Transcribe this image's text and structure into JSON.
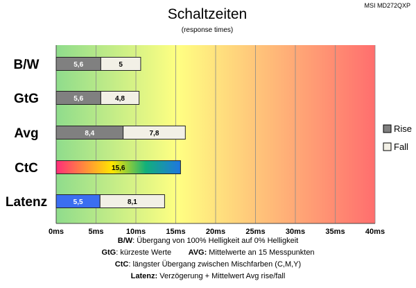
{
  "header": {
    "model": "MSI MD272QXP"
  },
  "chart_data": {
    "type": "bar",
    "orientation": "horizontal",
    "stacked": true,
    "title": "Schaltzeiten",
    "subtitle": "(response times)",
    "categories": [
      "B/W",
      "GtG",
      "Avg",
      "CtC",
      "Latenz"
    ],
    "series": [
      {
        "name": "Rise",
        "values": [
          5.6,
          5.6,
          8.4,
          null,
          5.5
        ],
        "labels": [
          "5,6",
          "5,6",
          "8,4",
          "",
          "5,5"
        ]
      },
      {
        "name": "Fall",
        "values": [
          5,
          4.8,
          7.8,
          null,
          8.1
        ],
        "labels": [
          "5",
          "4,8",
          "7,8",
          "",
          "8,1"
        ]
      },
      {
        "name": "CtC",
        "values": [
          null,
          null,
          null,
          15.6,
          null
        ],
        "labels": [
          "",
          "",
          "",
          "15,6",
          ""
        ]
      }
    ],
    "x_ticks": [
      "0ms",
      "5ms",
      "10ms",
      "15ms",
      "20ms",
      "25ms",
      "30ms",
      "35ms",
      "40ms"
    ],
    "xlim": [
      0,
      40
    ],
    "grid": true,
    "legend_position": "right",
    "colors": {
      "rise": "#808080",
      "fall": "#f2f0e6",
      "latenz_rise": "#3b6ef0",
      "background_gradient": [
        "#8fdc8c",
        "#ffff82",
        "#ff6e6e"
      ],
      "ctc_gradient": [
        "#ff2d7a",
        "#ffe600",
        "#12b07a",
        "#1f76e0"
      ]
    }
  },
  "legend": {
    "rise": "Rise",
    "fall": "Fall"
  },
  "footnotes": {
    "bw_key": "B/W",
    "bw_text": ":  Übergang von 100% Helligkeit auf 0% Helligkeit",
    "gtg_key": "GtG",
    "gtg_text": ": kürzeste  Werte",
    "avg_key": "AVG:",
    "avg_text": " Mittelwerte  an 15 Messpunkten",
    "ctc_key": "CtC",
    "ctc_text": ": längster Übergang  zwischen Mischfarben  (C,M,Y)",
    "latenz_key": "Latenz:",
    "latenz_text": " Verzögerung  + Mittelwert  Avg rise/fall"
  }
}
